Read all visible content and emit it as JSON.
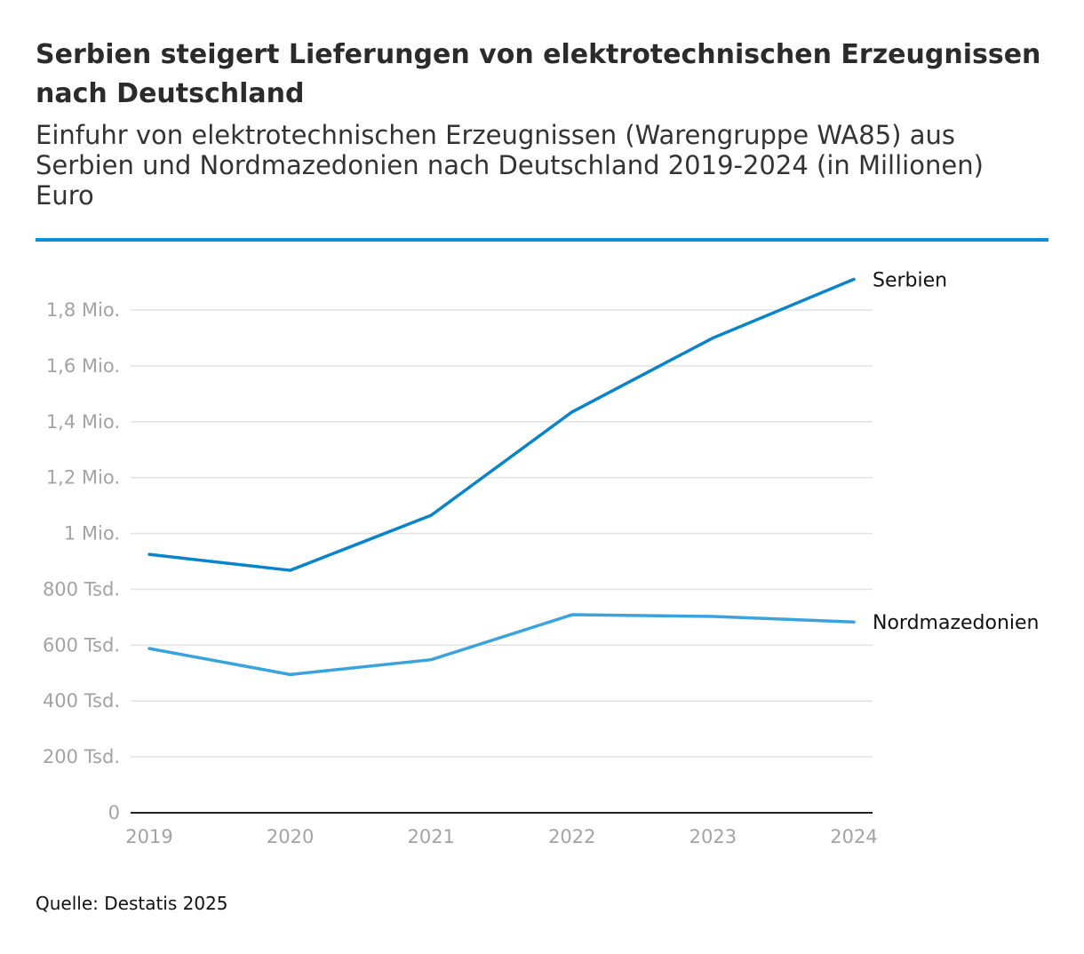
{
  "header": {
    "title": "Serbien steigert Lieferungen von elektrotechnischen Erzeugnissen nach Deutschland",
    "subtitle": "Einfuhr von elektrotechnischen Erzeugnissen (Warengruppe WA85) aus Serbien und Nordmazedonien nach Deutschland 2019-2024 (in Millionen) Euro"
  },
  "footer": {
    "source": "Quelle: Destatis 2025"
  },
  "colors": {
    "accent_rule": "#0b8fd6",
    "serbien": "#0a84c8",
    "nordmazedonien": "#3aa3dd",
    "grid": "#e2e2e2",
    "axis": "#222222",
    "tick_text": "#a3a3a3"
  },
  "chart_data": {
    "type": "line",
    "title": "Serbien steigert Lieferungen von elektrotechnischen Erzeugnissen nach Deutschland",
    "xlabel": "",
    "ylabel": "",
    "x": [
      "2019",
      "2020",
      "2021",
      "2022",
      "2023",
      "2024"
    ],
    "ylim": [
      0,
      1900000
    ],
    "yticks": [
      0,
      200000,
      400000,
      600000,
      800000,
      1000000,
      1200000,
      1400000,
      1600000,
      1800000
    ],
    "ytick_labels": [
      "0",
      "200 Tsd.",
      "400 Tsd.",
      "600 Tsd.",
      "800 Tsd.",
      "1 Mio.",
      "1,2 Mio.",
      "1,4 Mio.",
      "1,6 Mio.",
      "1,8 Mio."
    ],
    "grid": true,
    "legend": "direct labels at line ends (right)",
    "series": [
      {
        "name": "Serbien",
        "values": [
          925000,
          868000,
          1065000,
          1435000,
          1700000,
          1910000
        ]
      },
      {
        "name": "Nordmazedonien",
        "values": [
          588000,
          495000,
          548000,
          709000,
          703000,
          683000
        ]
      }
    ]
  }
}
